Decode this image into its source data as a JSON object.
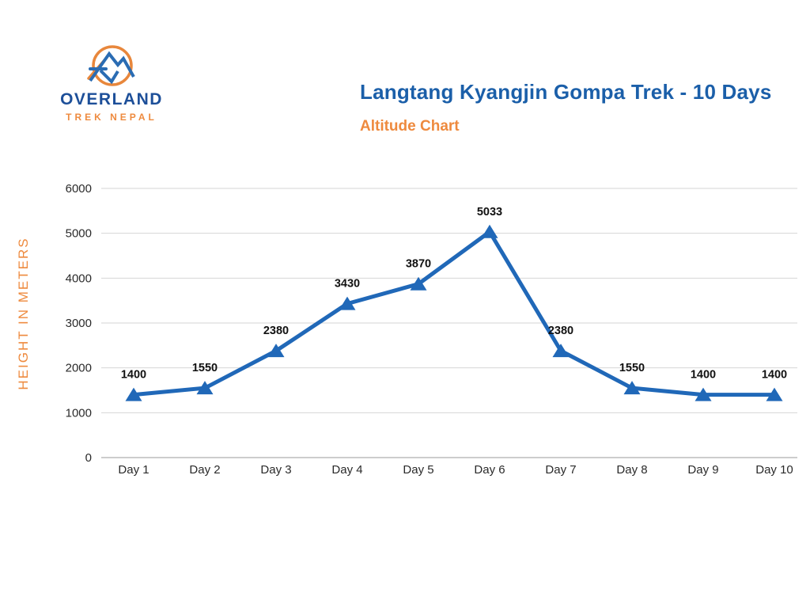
{
  "logo": {
    "name": "OVERLAND",
    "subname": "TREK NEPAL",
    "name_color": "#1d4f99",
    "subname_color": "#ee8a3e",
    "ring_color": "#e8873c",
    "mountain_color": "#2a6cb3"
  },
  "header": {
    "title": "Langtang Kyangjin Gompa Trek - 10 Days",
    "subtitle": "Altitude Chart",
    "title_color": "#1b5fa9",
    "subtitle_color": "#ee8a3e"
  },
  "chart_data": {
    "type": "line",
    "title": "Altitude Chart",
    "categories": [
      "Day 1",
      "Day 2",
      "Day 3",
      "Day 4",
      "Day 5",
      "Day 6",
      "Day 7",
      "Day 8",
      "Day 9",
      "Day 10"
    ],
    "values": [
      1400,
      1550,
      2380,
      3430,
      3870,
      5033,
      2380,
      1550,
      1400,
      1400
    ],
    "xlabel": "",
    "ylabel": "HEIGHT IN METERS",
    "ylim": [
      0,
      6000
    ],
    "yticks": [
      0,
      1000,
      2000,
      3000,
      4000,
      5000,
      6000
    ],
    "grid": true,
    "legend": "none",
    "marker": "triangle",
    "line_color": "#2068b8",
    "marker_color": "#2068b8",
    "data_label_color": "#111111",
    "gridline_color": "#d6d6d6",
    "axis_line_color": "#9b9b9b",
    "tick_label_color": "#2a2a2a",
    "ylabel_color": "#ee8a3e"
  }
}
